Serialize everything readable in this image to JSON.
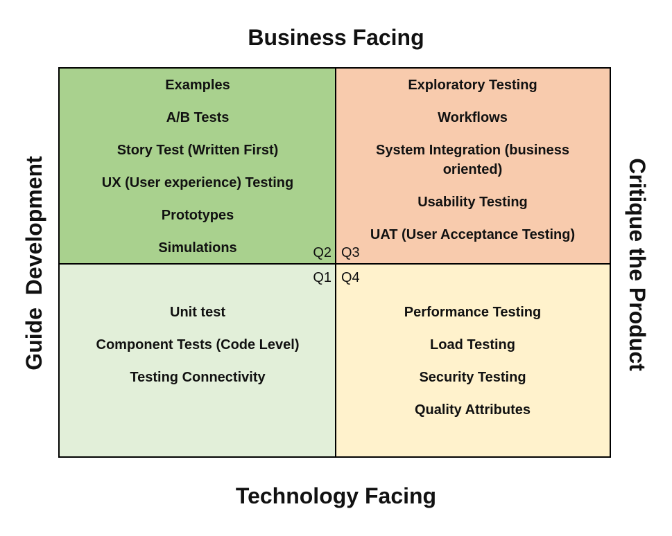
{
  "axes": {
    "top": "Business Facing",
    "bottom": "Technology Facing",
    "left": "Guide  Development",
    "right": "Critique the Product"
  },
  "quadrants": {
    "q2": {
      "label": "Q2",
      "color": "#a9d18e",
      "items": [
        "Examples",
        "A/B Tests",
        "Story Test (Written First)",
        "UX (User experience) Testing",
        "Prototypes",
        "Simulations"
      ]
    },
    "q3": {
      "label": "Q3",
      "color": "#f8cbad",
      "items": [
        "Exploratory Testing",
        "Workflows",
        "System Integration (business oriented)",
        "Usability Testing",
        "UAT (User Acceptance Testing)"
      ]
    },
    "q1": {
      "label": "Q1",
      "color": "#e2efd9",
      "items": [
        "Unit test",
        "Component Tests (Code Level)",
        "Testing Connectivity"
      ]
    },
    "q4": {
      "label": "Q4",
      "color": "#fff2cc",
      "items": [
        "Performance Testing",
        "Load Testing",
        "Security Testing",
        "Quality Attributes"
      ]
    }
  }
}
